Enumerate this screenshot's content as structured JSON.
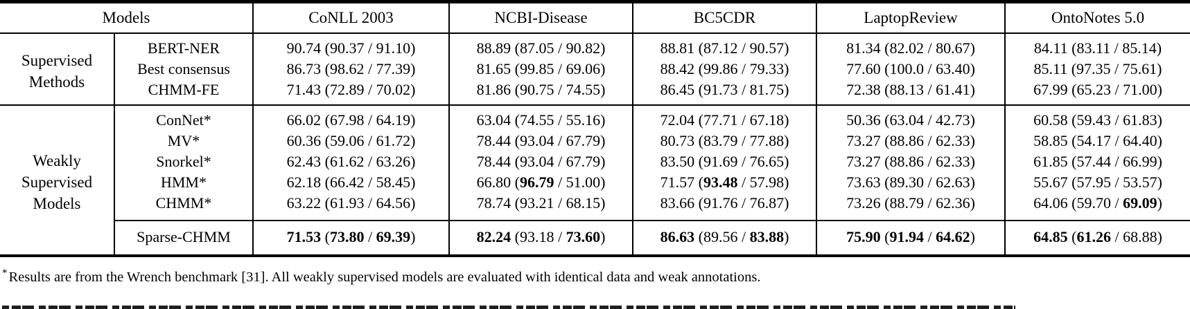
{
  "table": {
    "headers": [
      "Models",
      "CoNLL 2003",
      "NCBI-Disease",
      "BC5CDR",
      "LaptopReview",
      "OntoNotes 5.0"
    ],
    "punct": {
      "open": " (",
      "slash": " / ",
      "close": ")"
    },
    "groups": [
      {
        "label": "Supervised\nMethods",
        "rows": [
          {
            "model": "BERT-NER",
            "cells": [
              {
                "v": [
                  "90.74",
                  "90.37",
                  "91.10"
                ],
                "b": [
                  0,
                  0,
                  0
                ]
              },
              {
                "v": [
                  "88.89",
                  "87.05",
                  "90.82"
                ],
                "b": [
                  0,
                  0,
                  0
                ]
              },
              {
                "v": [
                  "88.81",
                  "87.12",
                  "90.57"
                ],
                "b": [
                  0,
                  0,
                  0
                ]
              },
              {
                "v": [
                  "81.34",
                  "82.02",
                  "80.67"
                ],
                "b": [
                  0,
                  0,
                  0
                ]
              },
              {
                "v": [
                  "84.11",
                  "83.11",
                  "85.14"
                ],
                "b": [
                  0,
                  0,
                  0
                ]
              }
            ]
          },
          {
            "model": "Best consensus",
            "cells": [
              {
                "v": [
                  "86.73",
                  "98.62",
                  "77.39"
                ],
                "b": [
                  0,
                  0,
                  0
                ]
              },
              {
                "v": [
                  "81.65",
                  "99.85",
                  "69.06"
                ],
                "b": [
                  0,
                  0,
                  0
                ]
              },
              {
                "v": [
                  "88.42",
                  "99.86",
                  "79.33"
                ],
                "b": [
                  0,
                  0,
                  0
                ]
              },
              {
                "v": [
                  "77.60",
                  "100.0",
                  "63.40"
                ],
                "b": [
                  0,
                  0,
                  0
                ]
              },
              {
                "v": [
                  "85.11",
                  "97.35",
                  "75.61"
                ],
                "b": [
                  0,
                  0,
                  0
                ]
              }
            ]
          },
          {
            "model": "CHMM-FE",
            "cells": [
              {
                "v": [
                  "71.43",
                  "72.89",
                  "70.02"
                ],
                "b": [
                  0,
                  0,
                  0
                ]
              },
              {
                "v": [
                  "81.86",
                  "90.75",
                  "74.55"
                ],
                "b": [
                  0,
                  0,
                  0
                ]
              },
              {
                "v": [
                  "86.45",
                  "91.73",
                  "81.75"
                ],
                "b": [
                  0,
                  0,
                  0
                ]
              },
              {
                "v": [
                  "72.38",
                  "88.13",
                  "61.41"
                ],
                "b": [
                  0,
                  0,
                  0
                ]
              },
              {
                "v": [
                  "67.99",
                  "65.23",
                  "71.00"
                ],
                "b": [
                  0,
                  0,
                  0
                ]
              }
            ]
          }
        ]
      },
      {
        "label": "Weakly\nSupervised\nModels",
        "rows": [
          {
            "model": "ConNet*",
            "cells": [
              {
                "v": [
                  "66.02",
                  "67.98",
                  "64.19"
                ],
                "b": [
                  0,
                  0,
                  0
                ]
              },
              {
                "v": [
                  "63.04",
                  "74.55",
                  "55.16"
                ],
                "b": [
                  0,
                  0,
                  0
                ]
              },
              {
                "v": [
                  "72.04",
                  "77.71",
                  "67.18"
                ],
                "b": [
                  0,
                  0,
                  0
                ]
              },
              {
                "v": [
                  "50.36",
                  "63.04",
                  "42.73"
                ],
                "b": [
                  0,
                  0,
                  0
                ]
              },
              {
                "v": [
                  "60.58",
                  "59.43",
                  "61.83"
                ],
                "b": [
                  0,
                  0,
                  0
                ]
              }
            ]
          },
          {
            "model": "MV*",
            "cells": [
              {
                "v": [
                  "60.36",
                  "59.06",
                  "61.72"
                ],
                "b": [
                  0,
                  0,
                  0
                ]
              },
              {
                "v": [
                  "78.44",
                  "93.04",
                  "67.79"
                ],
                "b": [
                  0,
                  0,
                  0
                ]
              },
              {
                "v": [
                  "80.73",
                  "83.79",
                  "77.88"
                ],
                "b": [
                  0,
                  0,
                  0
                ]
              },
              {
                "v": [
                  "73.27",
                  "88.86",
                  "62.33"
                ],
                "b": [
                  0,
                  0,
                  0
                ]
              },
              {
                "v": [
                  "58.85",
                  "54.17",
                  "64.40"
                ],
                "b": [
                  0,
                  0,
                  0
                ]
              }
            ]
          },
          {
            "model": "Snorkel*",
            "cells": [
              {
                "v": [
                  "62.43",
                  "61.62",
                  "63.26"
                ],
                "b": [
                  0,
                  0,
                  0
                ]
              },
              {
                "v": [
                  "78.44",
                  "93.04",
                  "67.79"
                ],
                "b": [
                  0,
                  0,
                  0
                ]
              },
              {
                "v": [
                  "83.50",
                  "91.69",
                  "76.65"
                ],
                "b": [
                  0,
                  0,
                  0
                ]
              },
              {
                "v": [
                  "73.27",
                  "88.86",
                  "62.33"
                ],
                "b": [
                  0,
                  0,
                  0
                ]
              },
              {
                "v": [
                  "61.85",
                  "57.44",
                  "66.99"
                ],
                "b": [
                  0,
                  0,
                  0
                ]
              }
            ]
          },
          {
            "model": "HMM*",
            "cells": [
              {
                "v": [
                  "62.18",
                  "66.42",
                  "58.45"
                ],
                "b": [
                  0,
                  0,
                  0
                ]
              },
              {
                "v": [
                  "66.80",
                  "96.79",
                  "51.00"
                ],
                "b": [
                  0,
                  1,
                  0
                ]
              },
              {
                "v": [
                  "71.57",
                  "93.48",
                  "57.98"
                ],
                "b": [
                  0,
                  1,
                  0
                ]
              },
              {
                "v": [
                  "73.63",
                  "89.30",
                  "62.63"
                ],
                "b": [
                  0,
                  0,
                  0
                ]
              },
              {
                "v": [
                  "55.67",
                  "57.95",
                  "53.57"
                ],
                "b": [
                  0,
                  0,
                  0
                ]
              }
            ]
          },
          {
            "model": "CHMM*",
            "cells": [
              {
                "v": [
                  "63.22",
                  "61.93",
                  "64.56"
                ],
                "b": [
                  0,
                  0,
                  0
                ]
              },
              {
                "v": [
                  "78.74",
                  "93.21",
                  "68.15"
                ],
                "b": [
                  0,
                  0,
                  0
                ]
              },
              {
                "v": [
                  "83.66",
                  "91.76",
                  "76.87"
                ],
                "b": [
                  0,
                  0,
                  0
                ]
              },
              {
                "v": [
                  "73.26",
                  "88.79",
                  "62.36"
                ],
                "b": [
                  0,
                  0,
                  0
                ]
              },
              {
                "v": [
                  "64.06",
                  "59.70",
                  "69.09"
                ],
                "b": [
                  0,
                  0,
                  1
                ]
              }
            ]
          }
        ],
        "summary": {
          "model": "Sparse-CHMM",
          "cells": [
            {
              "v": [
                "71.53",
                "73.80",
                "69.39"
              ],
              "b": [
                1,
                1,
                1
              ]
            },
            {
              "v": [
                "82.24",
                "93.18",
                "73.60"
              ],
              "b": [
                1,
                0,
                1
              ]
            },
            {
              "v": [
                "86.63",
                "89.56",
                "83.88"
              ],
              "b": [
                1,
                0,
                1
              ]
            },
            {
              "v": [
                "75.90",
                "91.94",
                "64.62"
              ],
              "b": [
                1,
                1,
                1
              ]
            },
            {
              "v": [
                "64.85",
                "61.26",
                "68.88"
              ],
              "b": [
                1,
                1,
                0
              ]
            }
          ]
        }
      }
    ],
    "footnote": {
      "star": "*",
      "text": "Results are from the Wrench benchmark [31]. All weakly supervised models are evaluated with identical data and weak annotations."
    }
  }
}
